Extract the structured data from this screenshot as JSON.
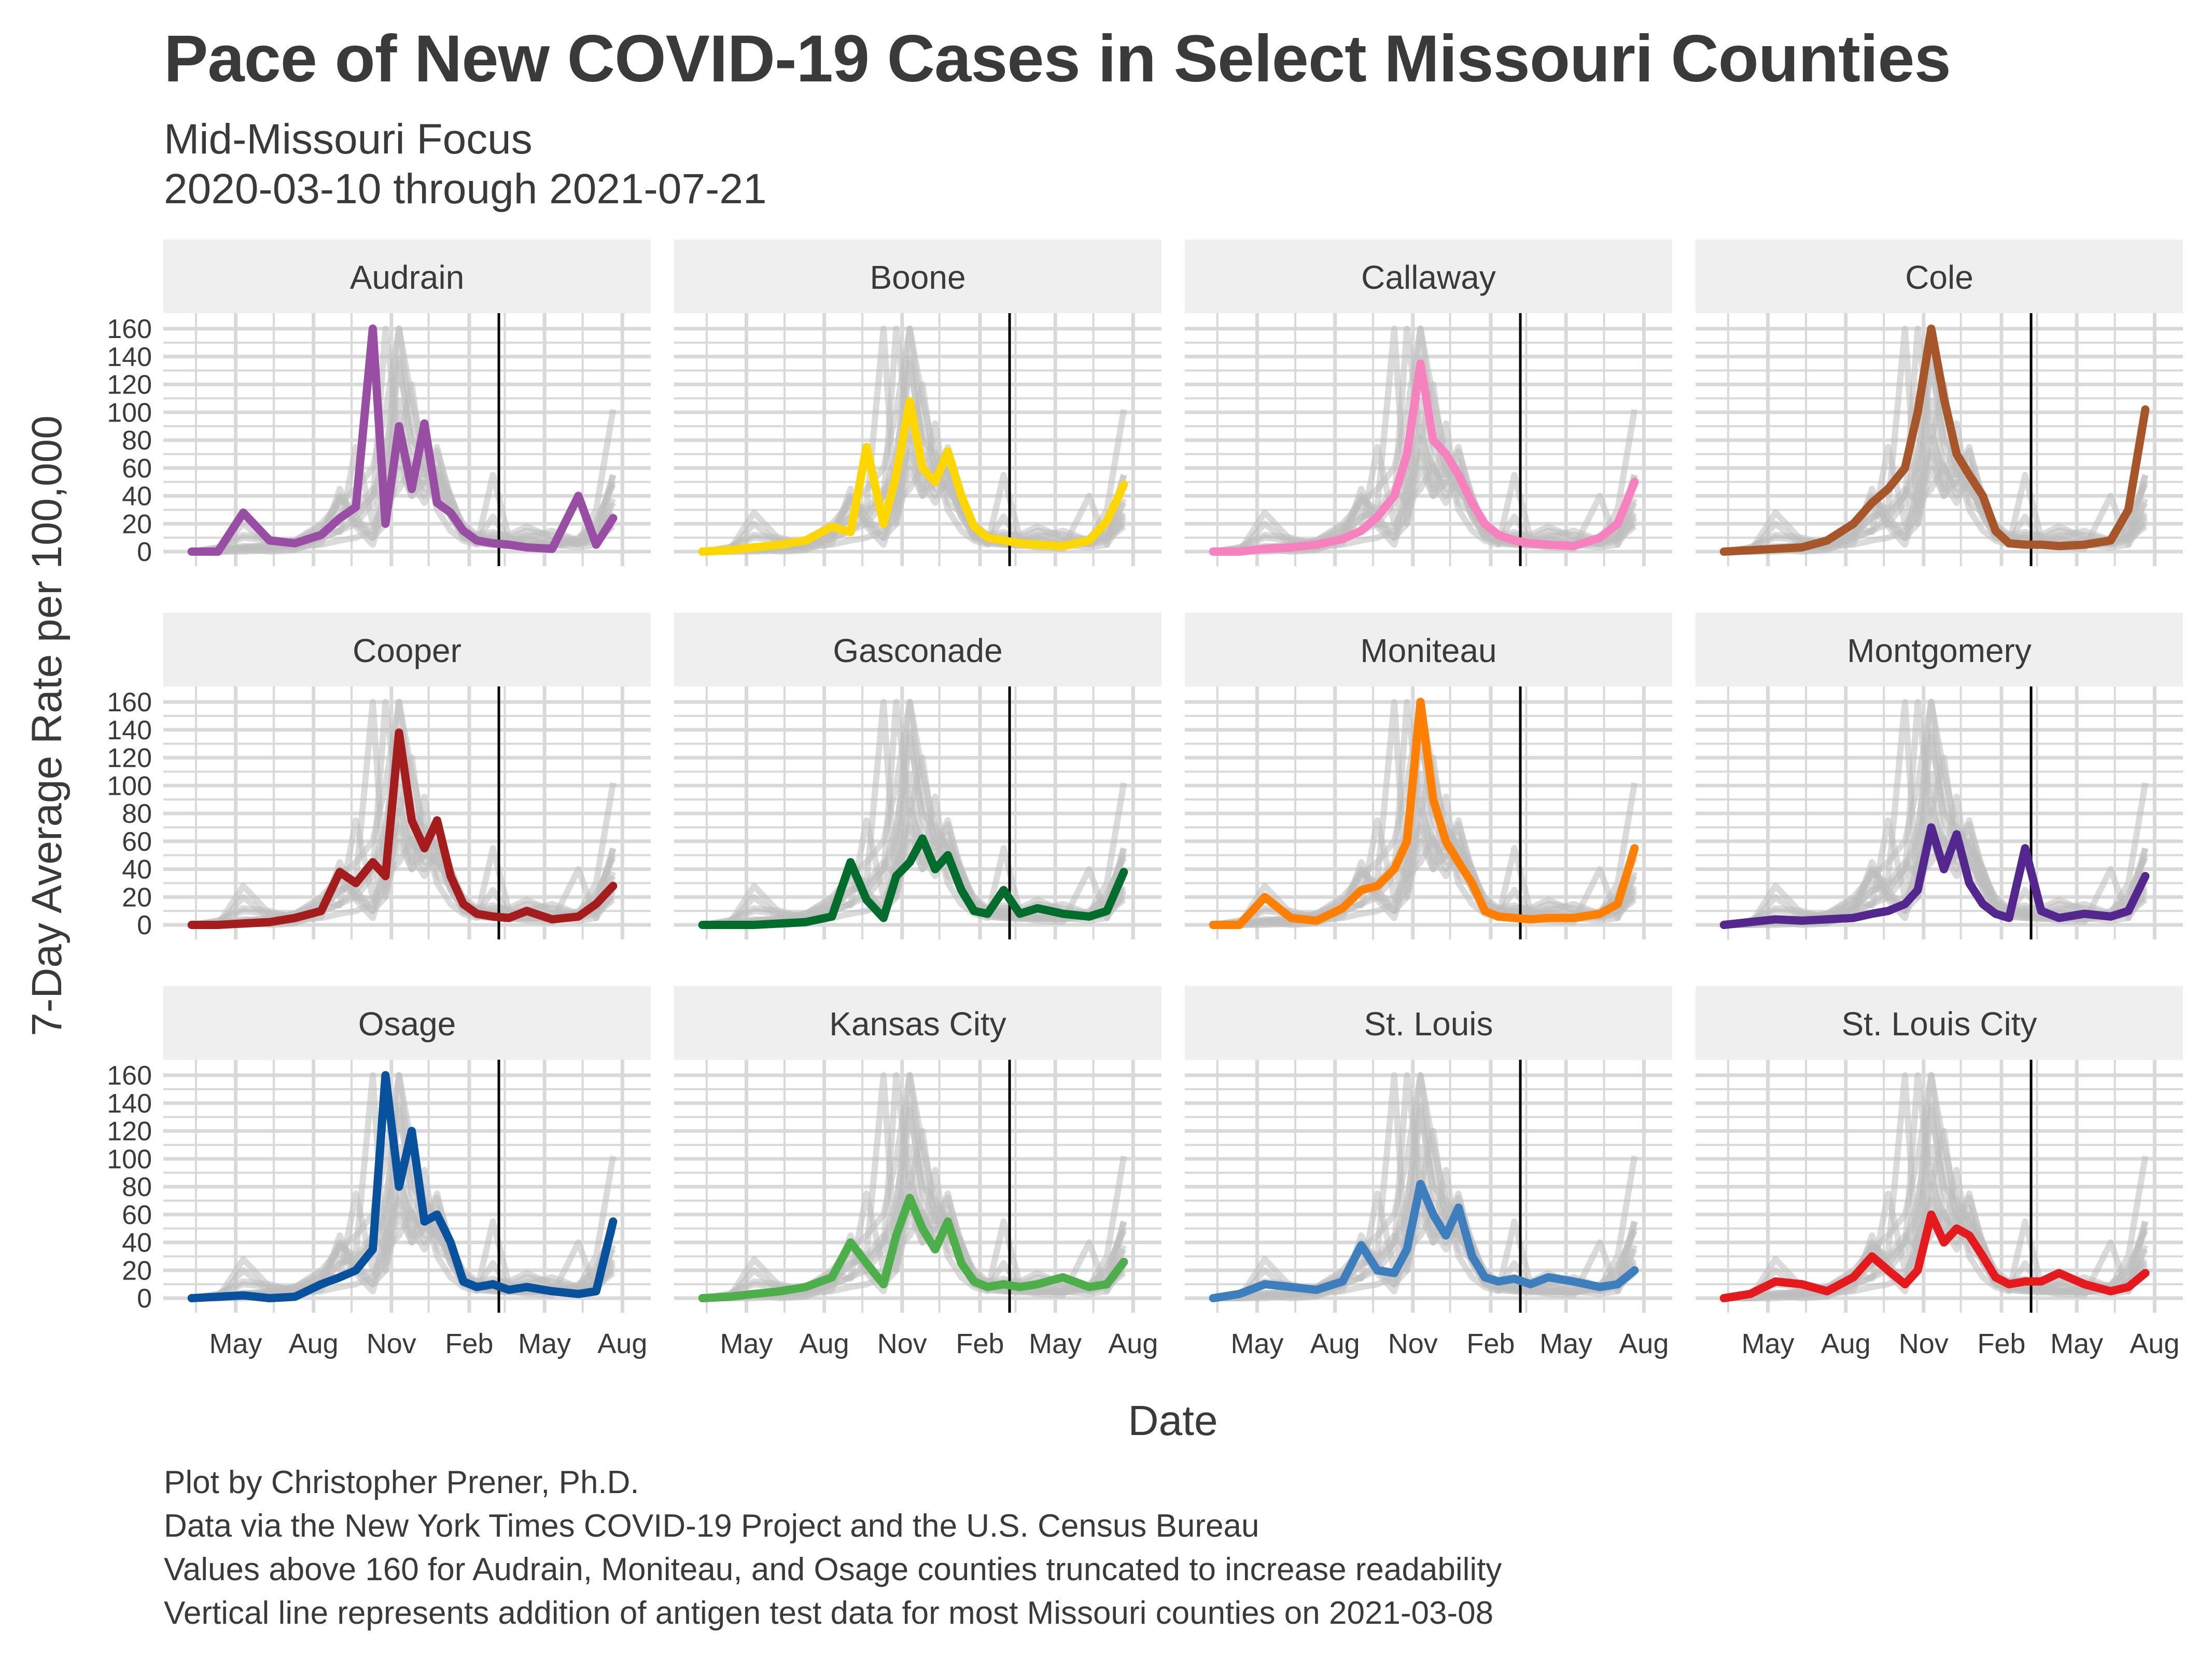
{
  "title": "Pace of New COVID-19 Cases in Select Missouri Counties",
  "subtitle_line1": "Mid-Missouri Focus",
  "subtitle_line2": "2020-03-10 through 2021-07-21",
  "captions": [
    "Plot by Christopher Prener, Ph.D.",
    "Data via the New York Times COVID-19 Project and the U.S. Census Bureau",
    "Values above 160 for Audrain, Moniteau, and Osage counties truncated to increase readability",
    "Vertical line represents addition of antigen test data for most Missouri counties on 2021-03-08"
  ],
  "chart_data": {
    "type": "line",
    "facet_layout": "3 rows x 4 columns",
    "xlabel": "Date",
    "ylabel": "7-Day Average Rate per 100,000",
    "x_range": [
      "2020-03-10",
      "2021-07-21"
    ],
    "ylim": [
      0,
      160
    ],
    "y_ticks": [
      0,
      20,
      40,
      60,
      80,
      100,
      120,
      140,
      160
    ],
    "x_ticks": [
      {
        "label": "May",
        "date": "2020-05-01"
      },
      {
        "label": "Aug",
        "date": "2020-08-01"
      },
      {
        "label": "Nov",
        "date": "2020-11-01"
      },
      {
        "label": "Feb",
        "date": "2021-02-01"
      },
      {
        "label": "May",
        "date": "2021-05-01"
      },
      {
        "label": "Aug",
        "date": "2021-08-01"
      }
    ],
    "reference_line_date": "2021-03-08",
    "background_series_color": "#bdbdbd",
    "grid": true,
    "dates": [
      "2020-03-10",
      "2020-04-10",
      "2020-05-10",
      "2020-06-10",
      "2020-07-10",
      "2020-08-10",
      "2020-09-01",
      "2020-09-20",
      "2020-10-10",
      "2020-10-25",
      "2020-11-10",
      "2020-11-25",
      "2020-12-10",
      "2020-12-25",
      "2021-01-10",
      "2021-01-25",
      "2021-02-10",
      "2021-03-01",
      "2021-03-20",
      "2021-04-10",
      "2021-05-10",
      "2021-06-10",
      "2021-07-01",
      "2021-07-21"
    ],
    "panels": [
      {
        "name": "Audrain",
        "color": "#984ea3",
        "values": [
          0,
          0,
          28,
          8,
          6,
          12,
          24,
          32,
          160,
          20,
          90,
          45,
          92,
          35,
          28,
          15,
          8,
          6,
          5,
          3,
          2,
          40,
          5,
          24
        ]
      },
      {
        "name": "Boone",
        "color": "#ffd700",
        "values": [
          0,
          1,
          3,
          5,
          8,
          18,
          14,
          75,
          20,
          55,
          108,
          60,
          50,
          72,
          40,
          18,
          10,
          8,
          6,
          5,
          4,
          8,
          22,
          48
        ]
      },
      {
        "name": "Callaway",
        "color": "#f781bf",
        "values": [
          0,
          0,
          2,
          3,
          5,
          9,
          15,
          25,
          40,
          70,
          135,
          80,
          70,
          55,
          35,
          20,
          12,
          8,
          6,
          5,
          4,
          10,
          20,
          50
        ]
      },
      {
        "name": "Cole",
        "color": "#a65628",
        "values": [
          0,
          1,
          2,
          3,
          8,
          20,
          35,
          45,
          60,
          100,
          160,
          110,
          70,
          55,
          40,
          15,
          6,
          5,
          5,
          4,
          5,
          8,
          30,
          102
        ]
      },
      {
        "name": "Cooper",
        "color": "#a51c1c",
        "values": [
          0,
          0,
          1,
          2,
          5,
          10,
          38,
          30,
          45,
          35,
          138,
          75,
          55,
          75,
          35,
          15,
          8,
          6,
          5,
          10,
          4,
          6,
          15,
          28
        ]
      },
      {
        "name": "Gasconade",
        "color": "#006d2c",
        "values": [
          0,
          0,
          0,
          1,
          2,
          6,
          45,
          18,
          5,
          35,
          45,
          62,
          40,
          50,
          25,
          10,
          8,
          25,
          8,
          12,
          8,
          6,
          10,
          38
        ]
      },
      {
        "name": "Moniteau",
        "color": "#ff7f00",
        "values": [
          0,
          0,
          20,
          5,
          3,
          12,
          25,
          28,
          40,
          60,
          160,
          90,
          60,
          45,
          30,
          10,
          6,
          5,
          4,
          5,
          5,
          8,
          15,
          55
        ]
      },
      {
        "name": "Montgomery",
        "color": "#54278f",
        "values": [
          0,
          2,
          4,
          3,
          4,
          5,
          8,
          10,
          15,
          25,
          70,
          40,
          65,
          30,
          15,
          8,
          5,
          55,
          10,
          5,
          8,
          6,
          10,
          35
        ]
      },
      {
        "name": "Osage",
        "color": "#08519c",
        "values": [
          0,
          1,
          2,
          0,
          1,
          10,
          15,
          20,
          35,
          160,
          80,
          120,
          55,
          60,
          40,
          12,
          8,
          10,
          6,
          8,
          5,
          3,
          5,
          55
        ]
      },
      {
        "name": "Kansas City",
        "color": "#4daf4a",
        "values": [
          0,
          1,
          3,
          5,
          8,
          15,
          40,
          25,
          10,
          45,
          72,
          50,
          35,
          55,
          25,
          12,
          8,
          10,
          8,
          10,
          15,
          8,
          10,
          26
        ]
      },
      {
        "name": "St. Louis",
        "color": "#3d7fbd",
        "values": [
          0,
          3,
          10,
          8,
          6,
          12,
          38,
          20,
          18,
          35,
          82,
          60,
          45,
          65,
          30,
          15,
          12,
          14,
          10,
          15,
          12,
          8,
          10,
          20
        ]
      },
      {
        "name": "St. Louis City",
        "color": "#e41a1c",
        "values": [
          0,
          3,
          12,
          10,
          5,
          15,
          30,
          20,
          10,
          20,
          60,
          40,
          50,
          45,
          30,
          15,
          10,
          12,
          12,
          18,
          10,
          5,
          8,
          18
        ]
      }
    ]
  }
}
